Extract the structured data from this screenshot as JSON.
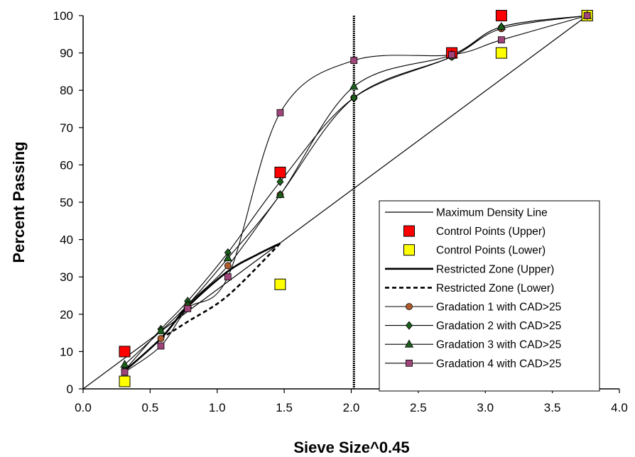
{
  "chart_data": {
    "type": "line",
    "xlabel": "Sieve Size^0.45",
    "ylabel": "Percent Passing",
    "xlim": [
      0,
      4
    ],
    "ylim": [
      0,
      100
    ],
    "xticks": [
      "0.0",
      "0.5",
      "1.0",
      "1.5",
      "2.0",
      "2.5",
      "3.0",
      "3.5",
      "4.0"
    ],
    "yticks": [
      "0",
      "10",
      "20",
      "30",
      "40",
      "50",
      "60",
      "70",
      "80",
      "90",
      "100"
    ],
    "legend_position": "bottom-right",
    "grid": false,
    "nominal_max_size_line": {
      "x": 2.02
    },
    "series": [
      {
        "name": "Maximum Density Line",
        "style": "line",
        "color": "#000000",
        "x": [
          0,
          3.76
        ],
        "y": [
          0,
          100
        ]
      },
      {
        "name": "Control Points (Upper)",
        "style": "square-marker",
        "color": "#ff0000",
        "x": [
          0.31,
          1.47,
          2.75,
          3.12,
          3.76
        ],
        "y": [
          10,
          58,
          90,
          100,
          100
        ]
      },
      {
        "name": "Control Points (Lower)",
        "style": "square-marker",
        "color": "#ffff00",
        "x": [
          0.31,
          1.47,
          3.12,
          3.76
        ],
        "y": [
          2,
          28,
          90,
          100
        ]
      },
      {
        "name": "Restricted Zone (Upper)",
        "style": "thick-line",
        "color": "#000000",
        "x": [
          0.31,
          0.58,
          0.78,
          1.08,
          1.3,
          1.47
        ],
        "y": [
          4.8,
          13.5,
          22.0,
          31.5,
          36.0,
          39.0
        ]
      },
      {
        "name": "Restricted Zone (Lower)",
        "style": "dashed-line",
        "color": "#000000",
        "x": [
          0.58,
          0.78,
          1.08,
          1.47
        ],
        "y": [
          13.5,
          18.0,
          25.0,
          39.0
        ]
      },
      {
        "name": "Gradation 1 with CAD>25",
        "style": "circle-marker",
        "color": "#b05a2c",
        "x": [
          0.31,
          0.58,
          0.78,
          1.08,
          1.47,
          2.02,
          2.75,
          3.12,
          3.76
        ],
        "y": [
          5,
          13.5,
          22.5,
          33,
          52,
          78,
          89,
          96.5,
          100
        ]
      },
      {
        "name": "Gradation 2 with CAD>25",
        "style": "diamond-marker",
        "color": "#1c5e1c",
        "x": [
          0.31,
          0.58,
          0.78,
          1.08,
          1.47,
          2.02,
          2.75,
          3.12,
          3.76
        ],
        "y": [
          5,
          16,
          23.5,
          36.5,
          55.5,
          78,
          89,
          97,
          100
        ]
      },
      {
        "name": "Gradation 3 with CAD>25",
        "style": "triangle-marker",
        "color": "#1c5e1c",
        "x": [
          0.31,
          0.58,
          0.78,
          1.08,
          1.47,
          2.02,
          2.75,
          3.12,
          3.76
        ],
        "y": [
          6.5,
          15.5,
          22.5,
          35,
          52,
          81,
          89.5,
          97,
          100
        ]
      },
      {
        "name": "Gradation 4 with CAD>25",
        "style": "square-marker-small",
        "color": "#a0457a",
        "x": [
          0.31,
          0.58,
          0.78,
          1.08,
          1.47,
          2.02,
          2.75,
          3.12,
          3.76
        ],
        "y": [
          4.5,
          11.5,
          21.5,
          30,
          74,
          88,
          89.5,
          93.5,
          100
        ]
      }
    ]
  }
}
